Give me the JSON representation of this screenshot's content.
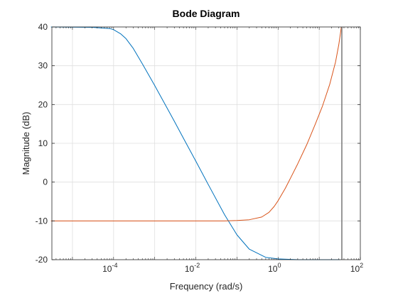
{
  "chart_data": {
    "type": "line",
    "title": "Bode Diagram",
    "xlabel": "Frequency (rad/s)",
    "ylabel": "Magnitude (dB)",
    "xscale": "log",
    "xlim_exponents": [
      -5.5,
      2
    ],
    "ylim": [
      -20,
      40
    ],
    "grid": true,
    "x_ticks": [
      {
        "base": "10",
        "exp": "-4",
        "value": 0.0001
      },
      {
        "base": "10",
        "exp": "-2",
        "value": 0.01
      },
      {
        "base": "10",
        "exp": "0",
        "value": 1
      },
      {
        "base": "10",
        "exp": "2",
        "value": 100
      }
    ],
    "y_ticks": [
      {
        "label": "40",
        "value": 40
      },
      {
        "label": "30",
        "value": 30
      },
      {
        "label": "20",
        "value": 20
      },
      {
        "label": "10",
        "value": 10
      },
      {
        "label": "0",
        "value": 0
      },
      {
        "label": "-10",
        "value": -10
      },
      {
        "label": "-20",
        "value": -20
      }
    ],
    "series": [
      {
        "color": "#0072BD",
        "points": [
          [
            3e-06,
            40
          ],
          [
            3e-05,
            39.9
          ],
          [
            8e-05,
            39.6
          ],
          [
            0.0001,
            39.3
          ],
          [
            0.00015,
            38.2
          ],
          [
            0.0002,
            37
          ],
          [
            0.0003,
            34.5
          ],
          [
            0.0005,
            30.5
          ],
          [
            0.001,
            24.9
          ],
          [
            0.002,
            19.1
          ],
          [
            0.003,
            15.7
          ],
          [
            0.005,
            11.3
          ],
          [
            0.01,
            5.4
          ],
          [
            0.02,
            -0.6
          ],
          [
            0.05,
            -8.4
          ],
          [
            0.1,
            -13.6
          ],
          [
            0.2,
            -17.3
          ],
          [
            0.5,
            -19.4
          ],
          [
            1,
            -19.8
          ],
          [
            3,
            -20
          ],
          [
            10,
            -20
          ],
          [
            32,
            -20
          ]
        ]
      },
      {
        "color": "#D95319",
        "points": [
          [
            3e-06,
            -10
          ],
          [
            0.001,
            -10
          ],
          [
            0.01,
            -10
          ],
          [
            0.05,
            -10
          ],
          [
            0.1,
            -9.9
          ],
          [
            0.2,
            -9.7
          ],
          [
            0.4,
            -9.0
          ],
          [
            0.6,
            -7.8
          ],
          [
            0.8,
            -6.3
          ],
          [
            1,
            -4.8
          ],
          [
            1.5,
            -1.6
          ],
          [
            2,
            1.0
          ],
          [
            3,
            4.7
          ],
          [
            5,
            9.7
          ],
          [
            8,
            14.9
          ],
          [
            12,
            19.6
          ],
          [
            18,
            25.2
          ],
          [
            25,
            31.0
          ],
          [
            30,
            35.5
          ],
          [
            33,
            38.5
          ],
          [
            34.5,
            40
          ]
        ]
      },
      {
        "color": "#7F7F7F",
        "points": [
          [
            35.5,
            40
          ],
          [
            35.5,
            -20
          ]
        ]
      }
    ]
  }
}
